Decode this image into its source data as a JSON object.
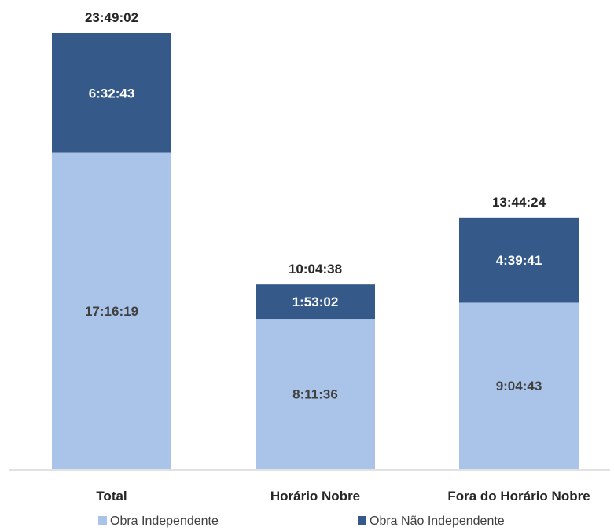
{
  "chart_data": {
    "type": "bar",
    "stacked": true,
    "categories": [
      "Total",
      "Horário Nobre",
      "Fora do Horário Nobre"
    ],
    "series": [
      {
        "name": "Obra Independente",
        "color": "#a9c4e8",
        "values_seconds": [
          62179,
          29496,
          32683
        ],
        "labels": [
          "17:16:19",
          "8:11:36",
          "9:04:43"
        ]
      },
      {
        "name": "Obra Não Independente",
        "color": "#355a8a",
        "values_seconds": [
          23563,
          6782,
          16781
        ],
        "labels": [
          "6:32:43",
          "1:53:02",
          "4:39:41"
        ]
      }
    ],
    "totals": [
      "23:49:02",
      "10:04:38",
      "13:44:24"
    ],
    "totals_seconds": [
      85742,
      36278,
      49464
    ],
    "value_unit": "h:mm:ss",
    "grid": false,
    "legend_position": "bottom"
  }
}
